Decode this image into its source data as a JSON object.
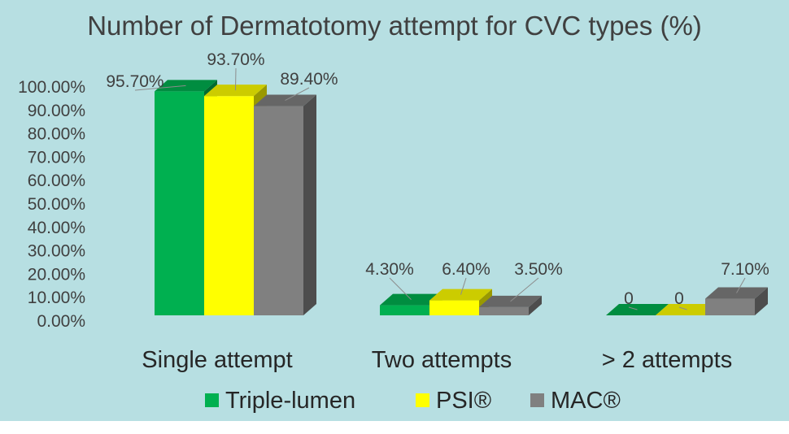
{
  "chart_data": {
    "type": "bar",
    "title": "Number of Dermatotomy attempt for CVC types (%)",
    "categories": [
      "Single attempt",
      "Two attempts",
      "> 2 attempts"
    ],
    "series": [
      {
        "name": "Triple-lumen",
        "color": "#00b050",
        "values": [
          95.7,
          4.3,
          0
        ],
        "labels": [
          "95.70%",
          "4.30%",
          "0"
        ]
      },
      {
        "name": "PSI®",
        "color": "#ffff00",
        "values": [
          93.7,
          6.4,
          0
        ],
        "labels": [
          "93.70%",
          "6.40%",
          "0"
        ]
      },
      {
        "name": "MAC®",
        "color": "#808080",
        "values": [
          89.4,
          3.5,
          7.1
        ],
        "labels": [
          "89.40%",
          "3.50%",
          "7.10%"
        ]
      }
    ],
    "yticks": [
      "0.00%",
      "10.00%",
      "20.00%",
      "30.00%",
      "40.00%",
      "50.00%",
      "60.00%",
      "70.00%",
      "80.00%",
      "90.00%",
      "100.00%"
    ],
    "ylim": [
      0,
      100
    ],
    "grid": false,
    "legend_position": "bottom",
    "style": "3d-clustered-column",
    "background_color": "#b7dfe2"
  }
}
